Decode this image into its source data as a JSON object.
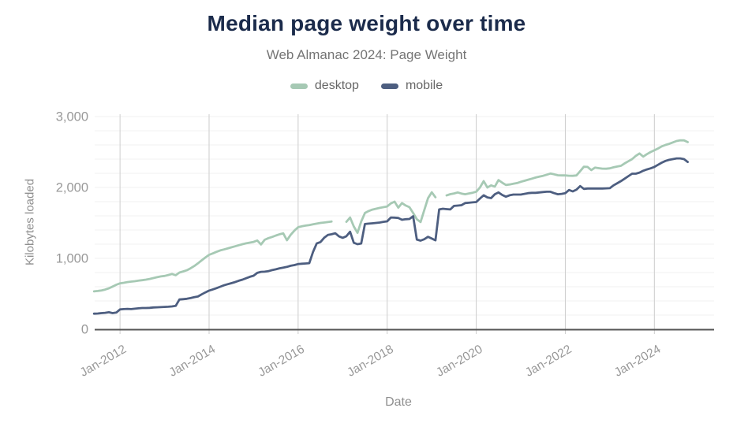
{
  "palette": {
    "background": "#ffffff",
    "title": "#1b2b4b",
    "subtitle": "#757575",
    "legend_text": "#666666",
    "tick_label": "#999999",
    "axis_title": "#8f8f8f",
    "grid_major": "#cccccc",
    "grid_minor": "#f2f2f2",
    "axis_line": "#555555"
  },
  "chart_data": {
    "type": "line",
    "title": "Median page weight over time",
    "subtitle": "Web Almanac 2024: Page Weight",
    "xlabel": "Date",
    "ylabel": "Kilobytes loaded",
    "x_start_month": "2011-06",
    "x_tick_labels": [
      "Jan-2012",
      "Jan-2014",
      "Jan-2016",
      "Jan-2018",
      "Jan-2020",
      "Jan-2022",
      "Jan-2024"
    ],
    "x_tick_month_indices": [
      7,
      31,
      55,
      79,
      103,
      127,
      151
    ],
    "y_ticks": [
      0,
      1000,
      2000,
      3000
    ],
    "y_tick_labels": [
      "0",
      "1,000",
      "2,000",
      "3,000"
    ],
    "ylim": [
      0,
      3000
    ],
    "grid": {
      "vertical_major": true,
      "horizontal_minor_step": 200,
      "legend_position": "top"
    },
    "units": "KB",
    "series": [
      {
        "name": "desktop",
        "color": "#a6c9b4",
        "values": [
          535,
          540,
          548,
          560,
          578,
          602,
          628,
          648,
          656,
          665,
          672,
          678,
          686,
          692,
          700,
          710,
          722,
          735,
          745,
          752,
          766,
          780,
          762,
          800,
          816,
          832,
          860,
          892,
          930,
          972,
          1012,
          1050,
          1070,
          1092,
          1112,
          1126,
          1140,
          1156,
          1170,
          1186,
          1200,
          1212,
          1222,
          1232,
          1252,
          1196,
          1262,
          1286,
          1302,
          1322,
          1340,
          1352,
          1256,
          1332,
          1392,
          1440,
          1452,
          1462,
          1470,
          1480,
          1490,
          1500,
          1506,
          1512,
          1520,
          null,
          null,
          null,
          1516,
          1577,
          1450,
          1360,
          1520,
          1640,
          1668,
          1688,
          1700,
          1712,
          1722,
          1732,
          1776,
          1800,
          1716,
          1780,
          1746,
          1722,
          1640,
          1552,
          1512,
          1680,
          1850,
          1932,
          1862,
          null,
          null,
          1888,
          1906,
          1916,
          1930,
          1914,
          1904,
          1916,
          1926,
          1940,
          2000,
          2090,
          2000,
          2030,
          2012,
          2105,
          2068,
          2035,
          2042,
          2052,
          2062,
          2080,
          2094,
          2110,
          2124,
          2140,
          2152,
          2165,
          2180,
          2197,
          2186,
          2172,
          2170,
          2170,
          2166,
          2164,
          2170,
          2230,
          2292,
          2290,
          2246,
          2280,
          2272,
          2266,
          2264,
          2270,
          2284,
          2296,
          2306,
          2340,
          2370,
          2400,
          2446,
          2480,
          2436,
          2470,
          2500,
          2524,
          2550,
          2580,
          2600,
          2616,
          2636,
          2656,
          2666,
          2664,
          2640
        ]
      },
      {
        "name": "mobile",
        "color": "#4d5e80",
        "values": [
          220,
          222,
          228,
          232,
          240,
          228,
          236,
          280,
          285,
          288,
          285,
          290,
          295,
          300,
          300,
          302,
          308,
          310,
          312,
          315,
          318,
          322,
          330,
          420,
          425,
          430,
          440,
          452,
          462,
          492,
          520,
          545,
          562,
          580,
          600,
          620,
          636,
          650,
          666,
          685,
          700,
          720,
          740,
          756,
          796,
          810,
          812,
          820,
          835,
          846,
          860,
          870,
          880,
          895,
          906,
          920,
          925,
          928,
          932,
          1090,
          1210,
          1230,
          1290,
          1330,
          1340,
          1355,
          1310,
          1290,
          1312,
          1376,
          1220,
          1200,
          1210,
          1485,
          1490,
          1495,
          1500,
          1506,
          1515,
          1522,
          1577,
          1575,
          1570,
          1545,
          1552,
          1556,
          1595,
          1265,
          1250,
          1270,
          1305,
          1280,
          1255,
          1690,
          1700,
          1695,
          1690,
          1740,
          1745,
          1750,
          1780,
          1785,
          1790,
          1795,
          1845,
          1890,
          1860,
          1850,
          1905,
          1930,
          1895,
          1870,
          1890,
          1900,
          1900,
          1900,
          1910,
          1920,
          1925,
          1925,
          1930,
          1935,
          1940,
          1940,
          1920,
          1905,
          1910,
          1920,
          1965,
          1945,
          1970,
          2020,
          1980,
          1985,
          1985,
          1985,
          1985,
          1985,
          1988,
          1990,
          2030,
          2060,
          2090,
          2125,
          2160,
          2195,
          2195,
          2210,
          2235,
          2255,
          2270,
          2290,
          2320,
          2350,
          2375,
          2390,
          2400,
          2410,
          2410,
          2400,
          2360
        ]
      }
    ]
  }
}
